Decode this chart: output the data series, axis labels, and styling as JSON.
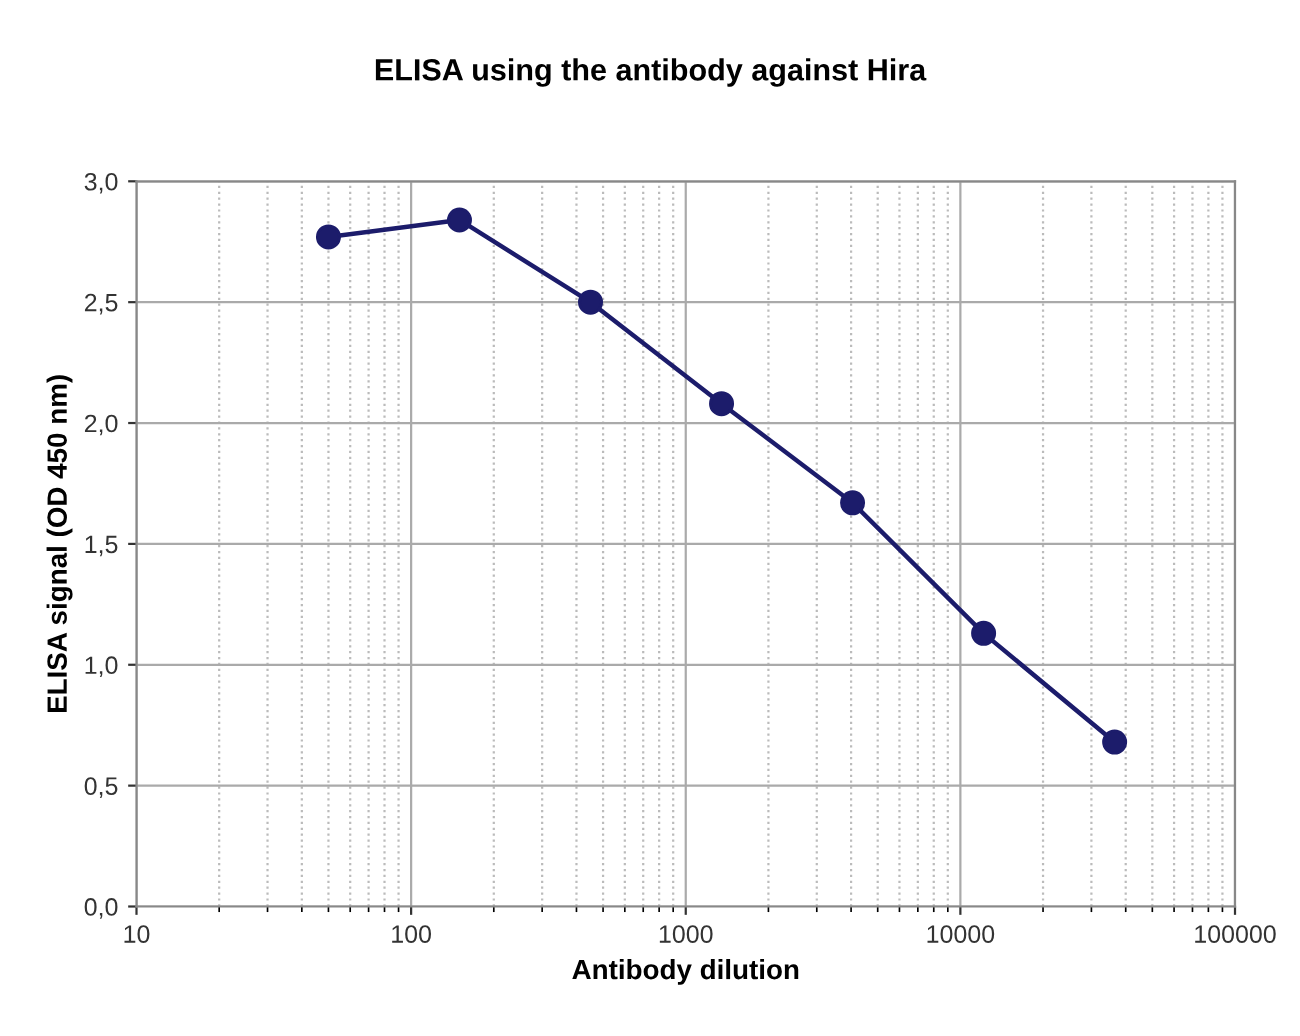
{
  "chart_data": {
    "type": "line",
    "title": "ELISA using the antibody against Hira",
    "xlabel": "Antibody dilution",
    "ylabel": "ELISA signal (OD 450 nm)",
    "log": "x",
    "grid": true,
    "marker": "circle",
    "line_style": "solid",
    "x": [
      50,
      150,
      450,
      1350,
      4050,
      12150,
      36450
    ],
    "series": [
      {
        "color": "#1c1c6b",
        "values": [
          2.77,
          2.84,
          2.5,
          2.08,
          1.67,
          1.13,
          0.68
        ]
      }
    ],
    "xlim": [
      10,
      100000
    ],
    "xticks": [
      10,
      100,
      1000,
      10000,
      100000
    ],
    "ylim": [
      0,
      3
    ],
    "yticks": [
      {
        "value": 0,
        "label": "0,0"
      },
      {
        "value": 0.5,
        "label": "0,5"
      },
      {
        "value": 1,
        "label": "1,0"
      },
      {
        "value": 1.5,
        "label": "1,5"
      },
      {
        "value": 2,
        "label": "2,0"
      },
      {
        "value": 2.5,
        "label": "2,5"
      },
      {
        "value": 3,
        "label": "3,0"
      }
    ]
  }
}
